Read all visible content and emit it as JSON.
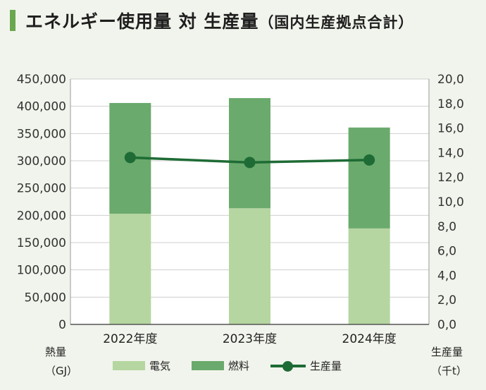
{
  "title": {
    "main": "エネルギー使用量 対 生産量",
    "sub": "（国内生産拠点合計）"
  },
  "colors": {
    "electricity": "#b5d6a0",
    "fuel": "#6aaa6c",
    "production": "#1e6b35",
    "accent": "#6aa84f"
  },
  "left_unit": {
    "line1": "熱量",
    "line2": "（GJ）"
  },
  "right_unit": {
    "line1": "生産量",
    "line2": "（千t）"
  },
  "legend": {
    "electricity": "電気",
    "fuel": "燃料",
    "production": "生産量"
  },
  "chart_data": {
    "type": "bar",
    "stacked": true,
    "categories": [
      "2022年度",
      "2023年度",
      "2024年度"
    ],
    "series": [
      {
        "name": "電気",
        "axis": "left",
        "values": [
          203000,
          213000,
          176000
        ]
      },
      {
        "name": "燃料",
        "axis": "left",
        "values": [
          203000,
          202000,
          185000
        ]
      },
      {
        "name": "生産量",
        "axis": "right",
        "type": "line",
        "values": [
          13.6,
          13.2,
          13.4
        ]
      }
    ],
    "ylim_left": [
      0,
      450000
    ],
    "ylim_right": [
      0,
      20
    ],
    "yticks_left": [
      "0",
      "50,000",
      "100,000",
      "150,000",
      "200,000",
      "250,000",
      "300,000",
      "350,000",
      "400,000",
      "450,000"
    ],
    "yticks_right": [
      "0,0",
      "2,0",
      "4,0",
      "6,0",
      "8,0",
      "10,0",
      "12,0",
      "14,0",
      "16,0",
      "18,0",
      "20,0"
    ],
    "grid": true
  }
}
